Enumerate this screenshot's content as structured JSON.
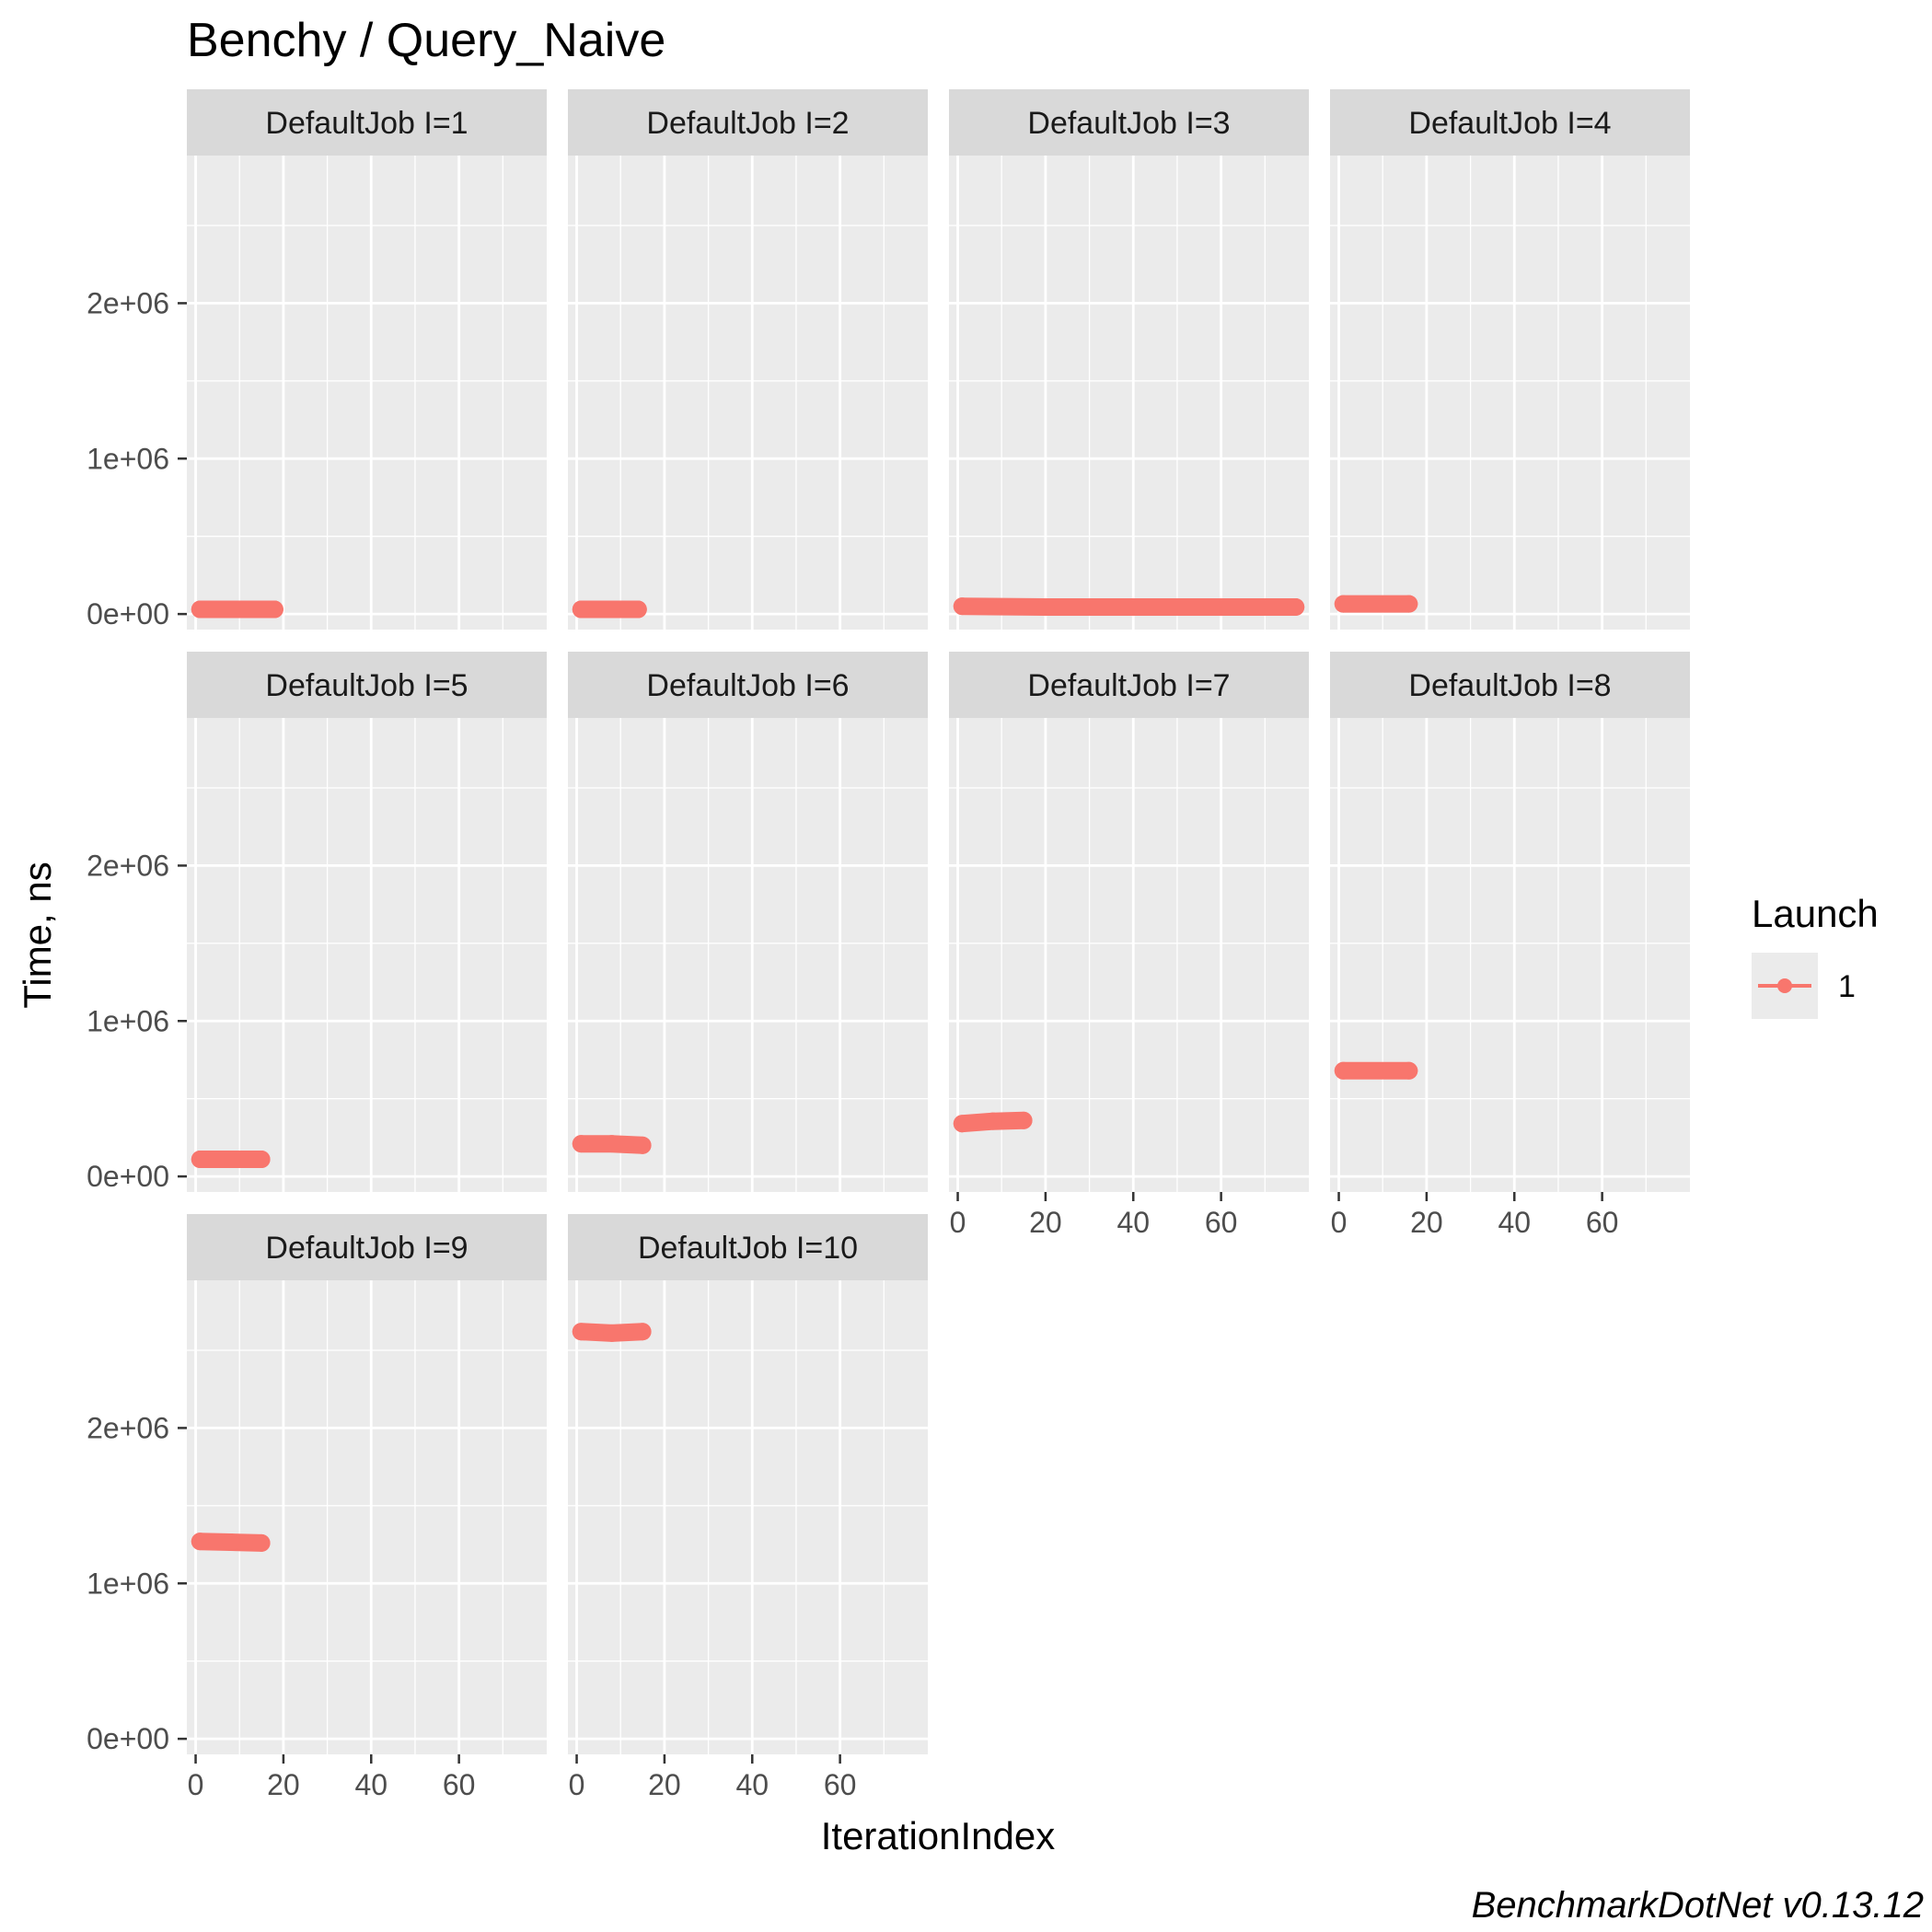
{
  "chart_data": {
    "type": "line",
    "title": "Benchy / Query_Naive",
    "xlabel": "IterationIndex",
    "ylabel": "Time, ns",
    "caption": "BenchmarkDotNet v0.13.12",
    "xlim": [
      -2,
      80
    ],
    "ylim": [
      -100000,
      2950000
    ],
    "x_ticks": [
      0,
      20,
      40,
      60
    ],
    "x_tick_labels": [
      "0",
      "20",
      "40",
      "60"
    ],
    "y_ticks": [
      0,
      1000000,
      2000000
    ],
    "y_tick_labels": [
      "0e+00",
      "1e+06",
      "2e+06"
    ],
    "grid": true,
    "legend": {
      "title": "Launch",
      "position": "right",
      "entries": [
        {
          "label": "1",
          "color": "#F8766D"
        }
      ]
    },
    "series_color": "#F8766D",
    "panels": [
      {
        "label": "DefaultJob I=1",
        "x_start": 1,
        "x_end": 18,
        "values": [
          30000
        ]
      },
      {
        "label": "DefaultJob I=2",
        "x_start": 1,
        "x_end": 14,
        "values": [
          30000
        ]
      },
      {
        "label": "DefaultJob I=3",
        "x_start": 1,
        "x_end": 77,
        "values": [
          50000,
          45000,
          45000,
          45000,
          45000
        ]
      },
      {
        "label": "DefaultJob I=4",
        "x_start": 1,
        "x_end": 16,
        "values": [
          65000
        ]
      },
      {
        "label": "DefaultJob I=5",
        "x_start": 1,
        "x_end": 15,
        "values": [
          110000
        ]
      },
      {
        "label": "DefaultJob I=6",
        "x_start": 1,
        "x_end": 15,
        "values": [
          210000,
          210000,
          200000
        ]
      },
      {
        "label": "DefaultJob I=7",
        "x_start": 1,
        "x_end": 15,
        "values": [
          340000,
          355000,
          360000
        ]
      },
      {
        "label": "DefaultJob I=8",
        "x_start": 1,
        "x_end": 16,
        "values": [
          680000
        ]
      },
      {
        "label": "DefaultJob I=9",
        "x_start": 1,
        "x_end": 15,
        "values": [
          1270000,
          1265000,
          1260000
        ]
      },
      {
        "label": "DefaultJob I=10",
        "x_start": 1,
        "x_end": 15,
        "values": [
          2620000,
          2610000,
          2620000
        ]
      }
    ]
  }
}
